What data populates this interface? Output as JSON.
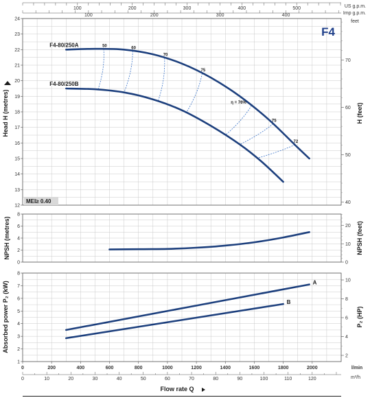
{
  "chart_data": [
    {
      "type": "line",
      "name": "head",
      "title": "F4",
      "ylabel": "Head H (metres)",
      "ylabel_right": "H (feet)",
      "top_axes": [
        {
          "unit": "US g.p.m.",
          "ticks": [
            100,
            200,
            300,
            400,
            500
          ]
        },
        {
          "unit": "Imp g.p.m.",
          "ticks": [
            100,
            200,
            300,
            400
          ]
        }
      ],
      "ylim": [
        12,
        24
      ],
      "y_ticks": [
        12,
        13,
        14,
        15,
        16,
        17,
        18,
        19,
        20,
        21,
        22,
        23,
        24
      ],
      "right_ticks": [
        40,
        50,
        60,
        70
      ],
      "right_unit": "feet",
      "xlim": [
        0,
        2200
      ],
      "x": [
        300,
        500,
        700,
        900,
        1100,
        1300,
        1500,
        1700,
        1900,
        1980
      ],
      "series": [
        {
          "name": "F4-80/250A",
          "label": "A",
          "x": [
            300,
            500,
            700,
            900,
            1100,
            1300,
            1500,
            1700,
            1900,
            1980
          ],
          "values": [
            22.0,
            22.05,
            22.0,
            21.7,
            21.1,
            20.2,
            19.0,
            17.5,
            15.7,
            15.0
          ]
        },
        {
          "name": "F4-80/250B",
          "label": "B",
          "x": [
            300,
            500,
            700,
            900,
            1100,
            1300,
            1500,
            1650,
            1800
          ],
          "values": [
            19.5,
            19.45,
            19.25,
            18.8,
            18.1,
            17.1,
            15.9,
            14.8,
            13.5
          ]
        }
      ],
      "efficiency_label_prefix": "η =",
      "efficiency_lines": [
        {
          "label": "50",
          "x": [
            560,
            520
          ]
        },
        {
          "label": "60",
          "x": [
            760,
            700
          ]
        },
        {
          "label": "70",
          "x": [
            980,
            935
          ]
        },
        {
          "label": "75",
          "x": [
            1240,
            1130
          ]
        },
        {
          "label": "76%",
          "x": [
            1580,
            1400
          ]
        },
        {
          "label": "75",
          "x": [
            1730,
            1500
          ]
        },
        {
          "label": "72",
          "x": [
            1880,
            1620
          ]
        }
      ],
      "annotation": "MEI≥ 0.40"
    },
    {
      "type": "line",
      "name": "npsh",
      "ylabel": "NPSH (metres)",
      "ylabel_right": "NPSH (feet)",
      "ylim": [
        0,
        8
      ],
      "y_ticks": [
        0,
        2,
        4,
        6,
        8
      ],
      "right_ticks": [
        0,
        10,
        20
      ],
      "xlim": [
        0,
        2200
      ],
      "x": [
        600,
        800,
        1000,
        1200,
        1400,
        1600,
        1800,
        1980
      ],
      "values": [
        2.1,
        2.15,
        2.2,
        2.4,
        2.75,
        3.3,
        4.1,
        5.0
      ]
    },
    {
      "type": "line",
      "name": "power",
      "ylabel": "Absorbed power P₂ (kW)",
      "ylabel_right": "P₂ (HP)",
      "ylim": [
        1,
        8
      ],
      "y_ticks": [
        1,
        2,
        3,
        4,
        5,
        6,
        7,
        8
      ],
      "right_ticks": [
        2,
        4,
        6,
        8,
        10
      ],
      "xlim": [
        0,
        2200
      ],
      "series": [
        {
          "name": "A",
          "label": "A",
          "x": [
            300,
            1980
          ],
          "values": [
            3.5,
            7.1
          ]
        },
        {
          "name": "B",
          "label": "B",
          "x": [
            300,
            1800
          ],
          "values": [
            2.85,
            5.55
          ]
        }
      ]
    }
  ],
  "x_axis": {
    "unit": "l/min",
    "ticks": [
      0,
      200,
      400,
      600,
      800,
      1000,
      1200,
      1400,
      1600,
      1800,
      2000
    ],
    "m3h_unit": "m³/h",
    "m3h_ticks": [
      0,
      10,
      20,
      30,
      40,
      50,
      60,
      70,
      80,
      90,
      100,
      110,
      120
    ],
    "title": "Flow rate Q"
  }
}
